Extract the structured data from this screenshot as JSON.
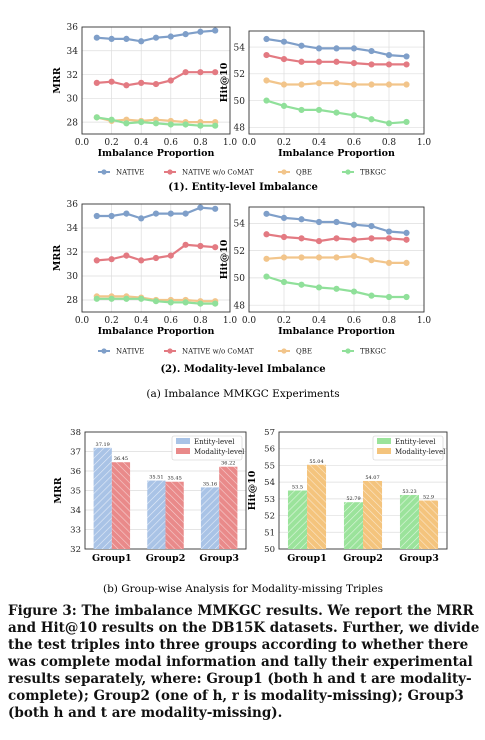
{
  "colors": {
    "native": "#7f9fc9",
    "native_wo": "#e37a82",
    "qbe": "#f2c58b",
    "tbkgc": "#90e09a",
    "entity_bar": "#a9c3e6",
    "modality_bar": "#e98a8a",
    "entity_bar_hit": "#9be39b",
    "modality_bar_hit": "#f4c47d"
  },
  "legend": [
    "NATIVE",
    "NATIVE w/o CoMAT",
    "QBE",
    "TBKGC"
  ],
  "section1_caption": "(1). Entity-level Imbalance",
  "section2_caption": "(2). Modality-level Imbalance",
  "subfig_a_caption": "(a)  Imbalance MMKGC Experiments",
  "subfig_b_caption": "(b)  Group-wise Analysis for Modality-missing Triples",
  "figure_caption": "Figure 3: The imbalance MMKGC results. We report the MRR and Hit@10 results on the DB15K datasets. Further, we divide the test triples into three groups according to whether there was complete modal information and tally their experimental results separately, where: Group1 (both h and t are modality-complete); Group2 (one of h, r is modality-missing); Group3 (both h and t are modality-missing).",
  "chart_data": [
    {
      "type": "line",
      "xlabel": "Imbalance Proportion",
      "ylabel": "MRR",
      "xlim": [
        0.0,
        1.0
      ],
      "ylim": [
        27,
        36
      ],
      "xticks": [
        "0.0",
        "0.2",
        "0.4",
        "0.6",
        "0.8",
        "1.0"
      ],
      "yticks": [
        "28",
        "30",
        "32",
        "34",
        "36"
      ],
      "x": [
        0.1,
        0.2,
        0.3,
        0.4,
        0.5,
        0.6,
        0.7,
        0.8,
        0.9
      ],
      "series": [
        {
          "name": "NATIVE",
          "values": [
            35.1,
            35.0,
            35.0,
            34.8,
            35.1,
            35.2,
            35.4,
            35.6,
            35.7
          ]
        },
        {
          "name": "NATIVE w/o CoMAT",
          "values": [
            31.3,
            31.4,
            31.1,
            31.3,
            31.2,
            31.5,
            32.2,
            32.2,
            32.2
          ]
        },
        {
          "name": "QBE",
          "values": [
            28.4,
            28.1,
            28.2,
            28.1,
            28.2,
            28.1,
            28.0,
            28.0,
            28.0
          ]
        },
        {
          "name": "TBKGC",
          "values": [
            28.4,
            28.2,
            27.9,
            28.0,
            27.9,
            27.8,
            27.8,
            27.7,
            27.7
          ]
        }
      ]
    },
    {
      "type": "line",
      "xlabel": "Imbalance Proportion",
      "ylabel": "Hit@10",
      "xlim": [
        0.0,
        1.0
      ],
      "ylim": [
        47.5,
        55.2
      ],
      "xticks": [
        "0.0",
        "0.2",
        "0.4",
        "0.6",
        "0.8",
        "1.0"
      ],
      "yticks": [
        "48",
        "50",
        "52",
        "54"
      ],
      "x": [
        0.1,
        0.2,
        0.3,
        0.4,
        0.5,
        0.6,
        0.7,
        0.8,
        0.9
      ],
      "series": [
        {
          "name": "NATIVE",
          "values": [
            54.6,
            54.4,
            54.1,
            53.9,
            53.9,
            53.9,
            53.7,
            53.4,
            53.3
          ]
        },
        {
          "name": "NATIVE w/o CoMAT",
          "values": [
            53.4,
            53.1,
            52.9,
            52.9,
            52.9,
            52.8,
            52.7,
            52.7,
            52.7
          ]
        },
        {
          "name": "QBE",
          "values": [
            51.5,
            51.2,
            51.2,
            51.3,
            51.3,
            51.2,
            51.2,
            51.2,
            51.2
          ]
        },
        {
          "name": "TBKGC",
          "values": [
            50.0,
            49.6,
            49.3,
            49.3,
            49.1,
            48.9,
            48.6,
            48.3,
            48.4
          ]
        }
      ]
    },
    {
      "type": "line",
      "xlabel": "Imbalance Proportion",
      "ylabel": "MRR",
      "xlim": [
        0.0,
        1.0
      ],
      "ylim": [
        27,
        36
      ],
      "xticks": [
        "0.0",
        "0.2",
        "0.4",
        "0.6",
        "0.8",
        "1.0"
      ],
      "yticks": [
        "28",
        "30",
        "32",
        "34",
        "36"
      ],
      "x": [
        0.1,
        0.2,
        0.3,
        0.4,
        0.5,
        0.6,
        0.7,
        0.8,
        0.9
      ],
      "series": [
        {
          "name": "NATIVE",
          "values": [
            35.0,
            35.0,
            35.2,
            34.8,
            35.2,
            35.2,
            35.2,
            35.7,
            35.6
          ]
        },
        {
          "name": "NATIVE w/o CoMAT",
          "values": [
            31.3,
            31.4,
            31.7,
            31.3,
            31.5,
            31.7,
            32.6,
            32.5,
            32.4
          ]
        },
        {
          "name": "QBE",
          "values": [
            28.3,
            28.3,
            28.3,
            28.2,
            28.0,
            28.0,
            28.0,
            27.9,
            27.9
          ]
        },
        {
          "name": "TBKGC",
          "values": [
            28.1,
            28.1,
            28.1,
            28.1,
            27.9,
            27.8,
            27.8,
            27.7,
            27.7
          ]
        }
      ]
    },
    {
      "type": "line",
      "xlabel": "Imbalance Proportion",
      "ylabel": "Hit@10",
      "xlim": [
        0.0,
        1.0
      ],
      "ylim": [
        47.5,
        55.2
      ],
      "xticks": [
        "0.0",
        "0.2",
        "0.4",
        "0.6",
        "0.8",
        "1.0"
      ],
      "yticks": [
        "48",
        "50",
        "52",
        "54"
      ],
      "x": [
        0.1,
        0.2,
        0.3,
        0.4,
        0.5,
        0.6,
        0.7,
        0.8,
        0.9
      ],
      "series": [
        {
          "name": "NATIVE",
          "values": [
            54.7,
            54.4,
            54.3,
            54.1,
            54.1,
            53.9,
            53.8,
            53.4,
            53.3
          ]
        },
        {
          "name": "NATIVE w/o CoMAT",
          "values": [
            53.2,
            53.0,
            52.9,
            52.7,
            52.9,
            52.8,
            52.9,
            52.9,
            52.8
          ]
        },
        {
          "name": "QBE",
          "values": [
            51.4,
            51.5,
            51.5,
            51.5,
            51.5,
            51.6,
            51.3,
            51.1,
            51.1
          ]
        },
        {
          "name": "TBKGC",
          "values": [
            50.1,
            49.7,
            49.5,
            49.3,
            49.2,
            49.0,
            48.7,
            48.6,
            48.6
          ]
        }
      ]
    },
    {
      "type": "bar",
      "ylabel": "MRR",
      "ylim": [
        32,
        38
      ],
      "yticks": [
        "32",
        "33",
        "34",
        "35",
        "36",
        "37",
        "38"
      ],
      "categories": [
        "Group1",
        "Group2",
        "Group3"
      ],
      "series": [
        {
          "name": "Entity-level",
          "values": [
            37.19,
            35.51,
            35.16
          ],
          "labels": [
            "37.19",
            "35.51",
            "35.16"
          ]
        },
        {
          "name": "Modality-level",
          "values": [
            36.45,
            35.45,
            36.22
          ],
          "labels": [
            "36.45",
            "35.45",
            "36.22"
          ]
        }
      ]
    },
    {
      "type": "bar",
      "ylabel": "Hit@10",
      "ylim": [
        50,
        57
      ],
      "yticks": [
        "50",
        "51",
        "52",
        "53",
        "54",
        "55",
        "56",
        "57"
      ],
      "categories": [
        "Group1",
        "Group2",
        "Group3"
      ],
      "series": [
        {
          "name": "Entity-level",
          "values": [
            53.5,
            52.8,
            53.23
          ],
          "labels": [
            "53.5",
            "52.79",
            "53.23"
          ]
        },
        {
          "name": "Modality-level",
          "values": [
            55.04,
            54.07,
            52.9
          ],
          "labels": [
            "55.04",
            "54.07",
            "52.9"
          ]
        }
      ]
    }
  ]
}
